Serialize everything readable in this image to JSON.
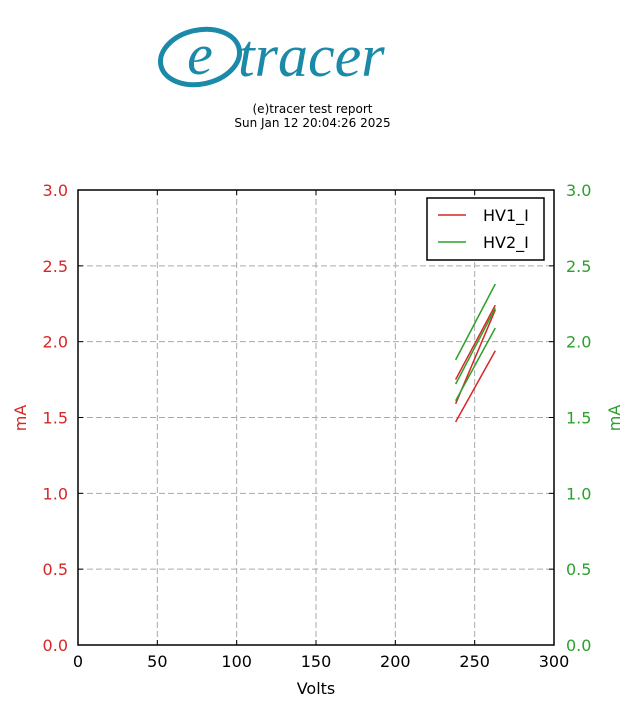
{
  "logo": {
    "letter": "e",
    "text": "tracer",
    "color": "#1a8aa8"
  },
  "report": {
    "title": "(e)tracer test report",
    "timestamp": "Sun Jan 12 20:04:26 2025"
  },
  "colors": {
    "series1": "#d62728",
    "series2": "#2ca02c",
    "left_axis": "#d62728",
    "right_axis": "#2ca02c"
  },
  "chart_data": {
    "type": "line",
    "xlabel": "Volts",
    "ylabel": "mA",
    "ylabel_right": "mA",
    "xlim": [
      0,
      300
    ],
    "ylim": [
      0,
      3.0
    ],
    "ylim_right": [
      0,
      3.0
    ],
    "x_ticks": [
      "0",
      "50",
      "100",
      "150",
      "200",
      "250",
      "300"
    ],
    "y_ticks": [
      "0.0",
      "0.5",
      "1.0",
      "1.5",
      "2.0",
      "2.5",
      "3.0"
    ],
    "y_ticks_right": [
      "0.0",
      "0.5",
      "1.0",
      "1.5",
      "2.0",
      "2.5",
      "3.0"
    ],
    "grid": true,
    "legend_position": "top-right",
    "series": [
      {
        "name": "HV1_I",
        "axis": "left",
        "lines": [
          {
            "x": [
              238,
              263
            ],
            "y": [
              1.47,
              1.94
            ]
          },
          {
            "x": [
              238,
              263
            ],
            "y": [
              1.59,
              2.21
            ]
          },
          {
            "x": [
              238,
              263
            ],
            "y": [
              1.75,
              2.24
            ]
          }
        ]
      },
      {
        "name": "HV2_I",
        "axis": "right",
        "lines": [
          {
            "x": [
              238,
              263
            ],
            "y": [
              1.88,
              2.38
            ]
          },
          {
            "x": [
              238,
              263
            ],
            "y": [
              1.72,
              2.22
            ]
          },
          {
            "x": [
              238,
              263
            ],
            "y": [
              1.61,
              2.09
            ]
          }
        ]
      }
    ]
  }
}
